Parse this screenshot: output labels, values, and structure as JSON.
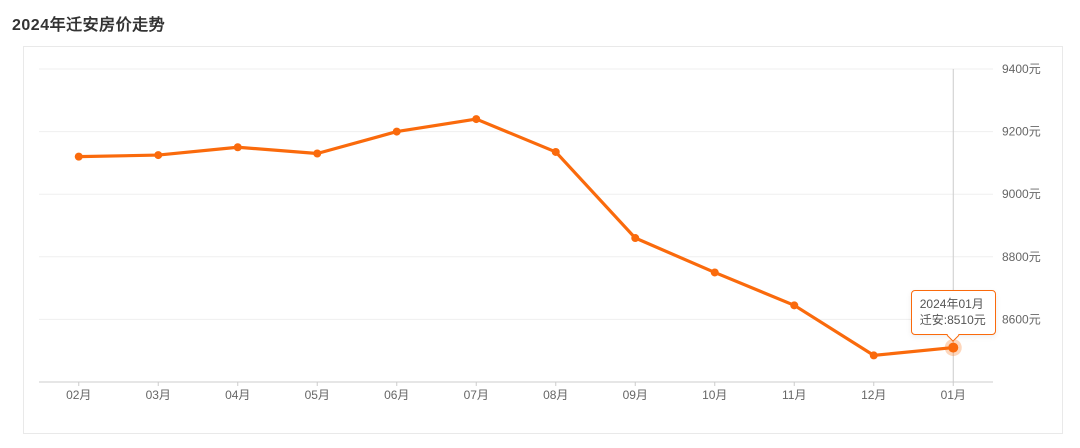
{
  "page": {
    "title": "2024年迁安房价走势"
  },
  "colors": {
    "accent": "#fa6a0c",
    "halo": "rgba(250,106,12,0.28)",
    "grid": "#efefef",
    "axis_line": "#cccccc",
    "crosshair": "#cccccc",
    "axis_text": "#666666",
    "title_text": "#333333",
    "panel_border": "#e9e9e9",
    "tooltip_text": "#555555"
  },
  "chart_data": {
    "type": "line",
    "title": "2024年迁安房价走势",
    "categories": [
      "02月",
      "03月",
      "04月",
      "05月",
      "06月",
      "07月",
      "08月",
      "09月",
      "10月",
      "11月",
      "12月",
      "01月"
    ],
    "series": [
      {
        "name": "迁安",
        "values": [
          9120,
          9125,
          9150,
          9130,
          9200,
          9240,
          9135,
          8860,
          8750,
          8645,
          8485,
          8510
        ]
      }
    ],
    "xlabel": "",
    "ylabel": "",
    "y_axis": {
      "position": "right",
      "min": 8400,
      "max": 9400,
      "tick_values": [
        9400,
        9200,
        9000,
        8800,
        8600
      ],
      "tick_labels": [
        "9400元",
        "9200元",
        "9000元",
        "8800元",
        "8600元"
      ],
      "unit": "元"
    },
    "grid": true,
    "legend": false,
    "highlight": {
      "index": 11,
      "category": "01月",
      "series": "迁安",
      "value": 8510
    }
  },
  "tooltip": {
    "line1": "2024年01月",
    "line2": "迁安:8510元"
  }
}
